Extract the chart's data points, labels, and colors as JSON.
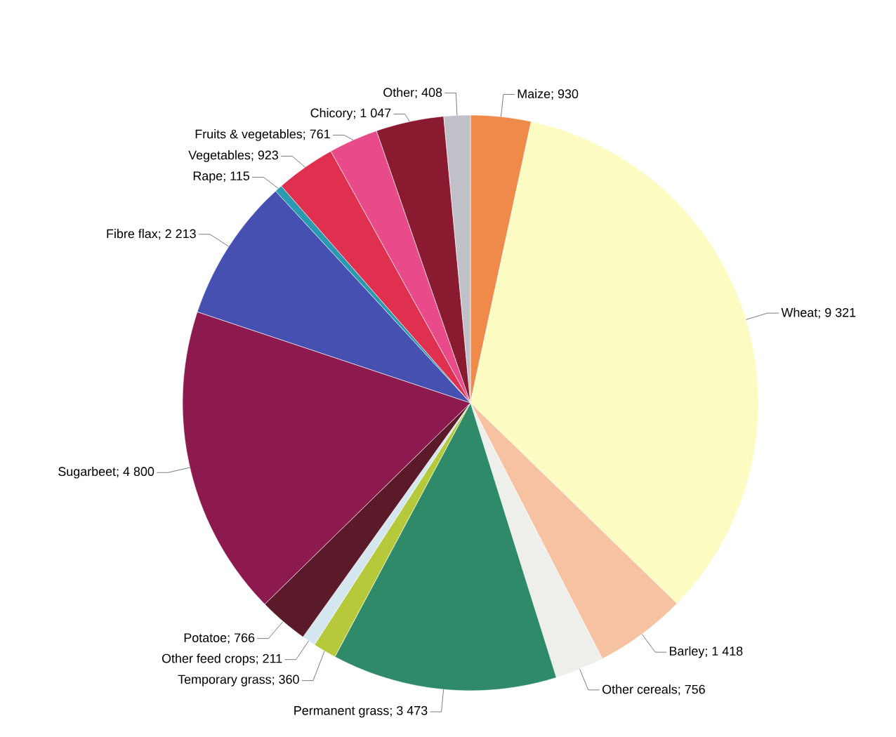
{
  "chart_data": {
    "type": "pie",
    "categories": [
      "Maize",
      "Wheat",
      "Barley",
      "Other cereals",
      "Permanent grass",
      "Temporary grass",
      "Other feed crops",
      "Potatoe",
      "Sugarbeet",
      "Fibre flax",
      "Rape",
      "Vegetables",
      "Fruits & vegetables",
      "Chicory",
      "Other"
    ],
    "values": [
      930,
      9321,
      1418,
      756,
      3473,
      360,
      211,
      766,
      4800,
      2213,
      115,
      923,
      761,
      1047,
      408
    ],
    "value_labels": [
      "; 930",
      "; 9 321",
      "; 1 418",
      "; 756",
      "; 3 473",
      "; 360",
      "; 211",
      "; 766",
      "; 4 800",
      "; 2 213",
      "; 115",
      "; 923",
      "; 761",
      "; 1 047",
      "; 408"
    ],
    "colors": [
      "#f08a4b",
      "#fbfbc2",
      "#f6c2a2",
      "#eeeeea",
      "#2e8a68",
      "#b5c93a",
      "#d4e6ee",
      "#5a1a2a",
      "#8c1a4e",
      "#4550b0",
      "#2a9ab0",
      "#e03050",
      "#e84a8a",
      "#8a1a30",
      "#c0c0c8"
    ]
  }
}
